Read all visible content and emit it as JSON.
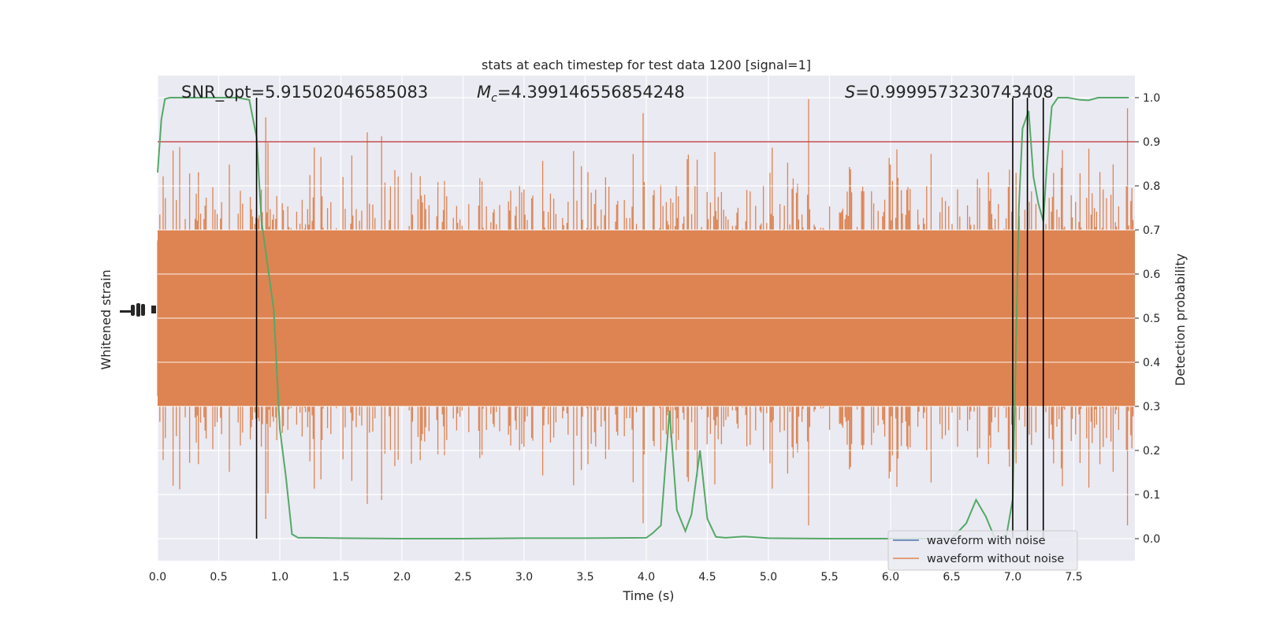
{
  "chart_data": {
    "type": "line",
    "title": "stats at each timestep for test data 1200 [signal=1]",
    "xlabel": "Time (s)",
    "ylabel_left": "Whitened strain",
    "ylabel_right": "Detection probability",
    "xlim": [
      0,
      8
    ],
    "ylim_right": [
      -0.05,
      1.05
    ],
    "x_ticks": [
      0.0,
      0.5,
      1.0,
      1.5,
      2.0,
      2.5,
      3.0,
      3.5,
      4.0,
      4.5,
      5.0,
      5.5,
      6.0,
      6.5,
      7.0,
      7.5
    ],
    "x_tick_labels": [
      "0.0",
      "0.5",
      "1.0",
      "1.5",
      "2.0",
      "2.5",
      "3.0",
      "3.5",
      "4.0",
      "4.5",
      "5.0",
      "5.5",
      "6.0",
      "6.5",
      "7.0",
      "7.5"
    ],
    "y_right_ticks": [
      0.0,
      0.1,
      0.2,
      0.3,
      0.4,
      0.5,
      0.6,
      0.7,
      0.8,
      0.9,
      1.0
    ],
    "y_right_tick_labels": [
      "0.0",
      "0.1",
      "0.2",
      "0.3",
      "0.4",
      "0.5",
      "0.6",
      "0.7",
      "0.8",
      "0.9",
      "1.0"
    ],
    "grid": true,
    "legend_position": "lower-right",
    "annotations": {
      "snr": "SNR_opt=5.91502046585083",
      "mc_symbol": "M",
      "mc_sub": "c",
      "mc_value": "=4.399146556854248",
      "s_symbol": "S",
      "s_value": "=0.9999573230743408"
    },
    "threshold": 0.9,
    "vertical_lines": [
      0.81,
      7.0,
      7.12,
      7.25
    ],
    "strain_band_right_units": [
      0.3,
      0.7
    ],
    "series": [
      {
        "name": "waveform with noise",
        "color": "#4c72b0"
      },
      {
        "name": "waveform without noise",
        "color": "#dd8452"
      },
      {
        "name": "",
        "color": "#55a868",
        "x": [
          0.0,
          0.03,
          0.06,
          0.1,
          0.15,
          0.3,
          0.5,
          0.65,
          0.75,
          0.81,
          0.85,
          0.9,
          0.95,
          1.0,
          1.05,
          1.1,
          1.15,
          1.25,
          1.5,
          2.0,
          2.5,
          3.0,
          3.5,
          4.0,
          4.05,
          4.12,
          4.19,
          4.25,
          4.32,
          4.37,
          4.44,
          4.5,
          4.57,
          4.65,
          4.8,
          5.0,
          5.5,
          6.0,
          6.5,
          6.62,
          6.7,
          6.78,
          6.85,
          6.9,
          6.95,
          7.0,
          7.05,
          7.08,
          7.13,
          7.17,
          7.21,
          7.25,
          7.28,
          7.32,
          7.37,
          7.45,
          7.55,
          7.62,
          7.7,
          7.8,
          7.95
        ],
        "y": [
          0.83,
          0.95,
          0.997,
          1.0,
          1.0,
          1.0,
          1.0,
          1.0,
          0.995,
          0.91,
          0.72,
          0.62,
          0.52,
          0.25,
          0.14,
          0.01,
          0.002,
          0.002,
          0.001,
          0.0,
          0.0,
          0.001,
          0.001,
          0.002,
          0.012,
          0.03,
          0.29,
          0.065,
          0.017,
          0.055,
          0.2,
          0.045,
          0.004,
          0.002,
          0.005,
          0.001,
          0.0,
          0.0,
          0.0,
          0.035,
          0.088,
          0.05,
          0.003,
          0.001,
          0.01,
          0.09,
          0.75,
          0.93,
          0.97,
          0.82,
          0.76,
          0.72,
          0.85,
          0.98,
          1.0,
          1.0,
          0.995,
          0.994,
          1.0,
          1.0,
          1.0
        ]
      }
    ]
  }
}
